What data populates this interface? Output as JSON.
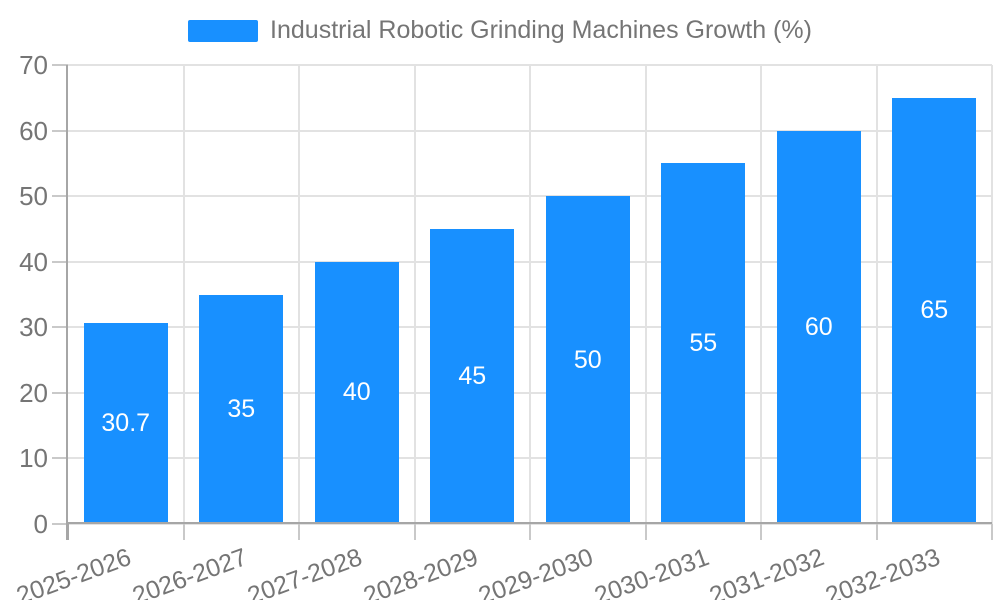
{
  "legend": {
    "label": "Industrial Robotic Grinding Machines Growth (%)"
  },
  "chart_data": {
    "type": "bar",
    "title": "Industrial Robotic Grinding Machines Growth (%)",
    "categories": [
      "2025-2026",
      "2026-2027",
      "2027-2028",
      "2028-2029",
      "2029-2030",
      "2030-2031",
      "2031-2032",
      "2032-2033"
    ],
    "series": [
      {
        "name": "Industrial Robotic Grinding Machines Growth (%)",
        "values": [
          30.7,
          35,
          40,
          45,
          50,
          55,
          60,
          65
        ]
      }
    ],
    "values": [
      30.7,
      35,
      40,
      45,
      50,
      55,
      60,
      65
    ],
    "value_labels": [
      "30.7",
      "35",
      "40",
      "45",
      "50",
      "55",
      "60",
      "65"
    ],
    "xlabel": "",
    "ylabel": "",
    "ylim": [
      0,
      70
    ],
    "yticks": [
      0,
      10,
      20,
      30,
      40,
      50,
      60,
      70
    ],
    "grid": true,
    "legend_position": "top-center",
    "value_labels_inside": true,
    "colors": {
      "bar": "#1890FF",
      "grid": "#e2e2e2",
      "axis": "#a6a6a6",
      "tick": "#c9c9c9",
      "text": "#757575",
      "value_label": "#ffffff"
    }
  }
}
